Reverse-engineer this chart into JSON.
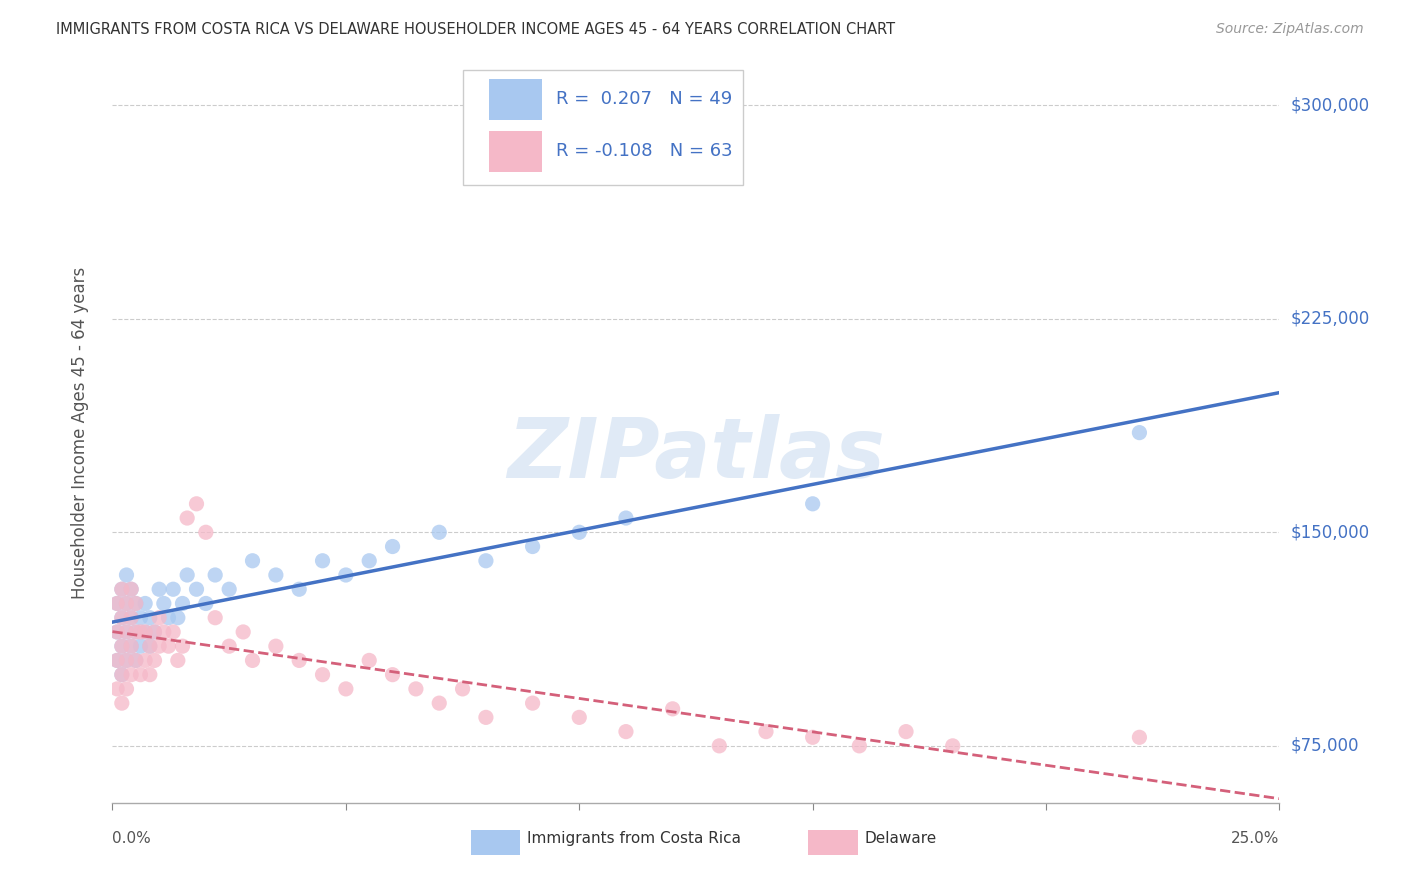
{
  "title": "IMMIGRANTS FROM COSTA RICA VS DELAWARE HOUSEHOLDER INCOME AGES 45 - 64 YEARS CORRELATION CHART",
  "source": "Source: ZipAtlas.com",
  "ylabel": "Householder Income Ages 45 - 64 years",
  "watermark": "ZIPatlas",
  "blue_R": 0.207,
  "blue_N": 49,
  "pink_R": -0.108,
  "pink_N": 63,
  "blue_color": "#a8c8f0",
  "pink_color": "#f5b8c8",
  "blue_line_color": "#4472c4",
  "pink_line_color": "#d4607a",
  "ytick_labels": [
    "$75,000",
    "$150,000",
    "$225,000",
    "$300,000"
  ],
  "ytick_values": [
    75000,
    150000,
    225000,
    300000
  ],
  "xlim": [
    0.0,
    0.25
  ],
  "ylim": [
    55000,
    315000
  ],
  "legend_label1": "Immigrants from Costa Rica",
  "legend_label2": "Delaware",
  "blue_x": [
    0.001,
    0.001,
    0.001,
    0.002,
    0.002,
    0.002,
    0.002,
    0.003,
    0.003,
    0.003,
    0.003,
    0.004,
    0.004,
    0.004,
    0.005,
    0.005,
    0.005,
    0.006,
    0.006,
    0.007,
    0.007,
    0.008,
    0.008,
    0.009,
    0.01,
    0.011,
    0.012,
    0.013,
    0.014,
    0.015,
    0.016,
    0.018,
    0.02,
    0.022,
    0.025,
    0.03,
    0.035,
    0.04,
    0.045,
    0.05,
    0.055,
    0.06,
    0.07,
    0.08,
    0.09,
    0.1,
    0.11,
    0.15,
    0.22
  ],
  "blue_y": [
    105000,
    115000,
    125000,
    100000,
    110000,
    120000,
    130000,
    105000,
    115000,
    125000,
    135000,
    110000,
    120000,
    130000,
    105000,
    115000,
    125000,
    110000,
    120000,
    115000,
    125000,
    110000,
    120000,
    115000,
    130000,
    125000,
    120000,
    130000,
    120000,
    125000,
    135000,
    130000,
    125000,
    135000,
    130000,
    140000,
    135000,
    130000,
    140000,
    135000,
    140000,
    145000,
    150000,
    140000,
    145000,
    150000,
    155000,
    160000,
    185000
  ],
  "pink_x": [
    0.001,
    0.001,
    0.001,
    0.001,
    0.002,
    0.002,
    0.002,
    0.002,
    0.002,
    0.003,
    0.003,
    0.003,
    0.003,
    0.004,
    0.004,
    0.004,
    0.004,
    0.005,
    0.005,
    0.005,
    0.006,
    0.006,
    0.007,
    0.007,
    0.008,
    0.008,
    0.009,
    0.009,
    0.01,
    0.01,
    0.011,
    0.012,
    0.013,
    0.014,
    0.015,
    0.016,
    0.018,
    0.02,
    0.022,
    0.025,
    0.028,
    0.03,
    0.035,
    0.04,
    0.045,
    0.05,
    0.055,
    0.06,
    0.065,
    0.07,
    0.075,
    0.08,
    0.09,
    0.1,
    0.11,
    0.12,
    0.13,
    0.14,
    0.15,
    0.16,
    0.17,
    0.18,
    0.22
  ],
  "pink_y": [
    95000,
    105000,
    115000,
    125000,
    90000,
    100000,
    110000,
    120000,
    130000,
    95000,
    105000,
    115000,
    125000,
    100000,
    110000,
    120000,
    130000,
    105000,
    115000,
    125000,
    100000,
    115000,
    105000,
    115000,
    100000,
    110000,
    105000,
    115000,
    110000,
    120000,
    115000,
    110000,
    115000,
    105000,
    110000,
    155000,
    160000,
    150000,
    120000,
    110000,
    115000,
    105000,
    110000,
    105000,
    100000,
    95000,
    105000,
    100000,
    95000,
    90000,
    95000,
    85000,
    90000,
    85000,
    80000,
    88000,
    75000,
    80000,
    78000,
    75000,
    80000,
    75000,
    78000
  ]
}
